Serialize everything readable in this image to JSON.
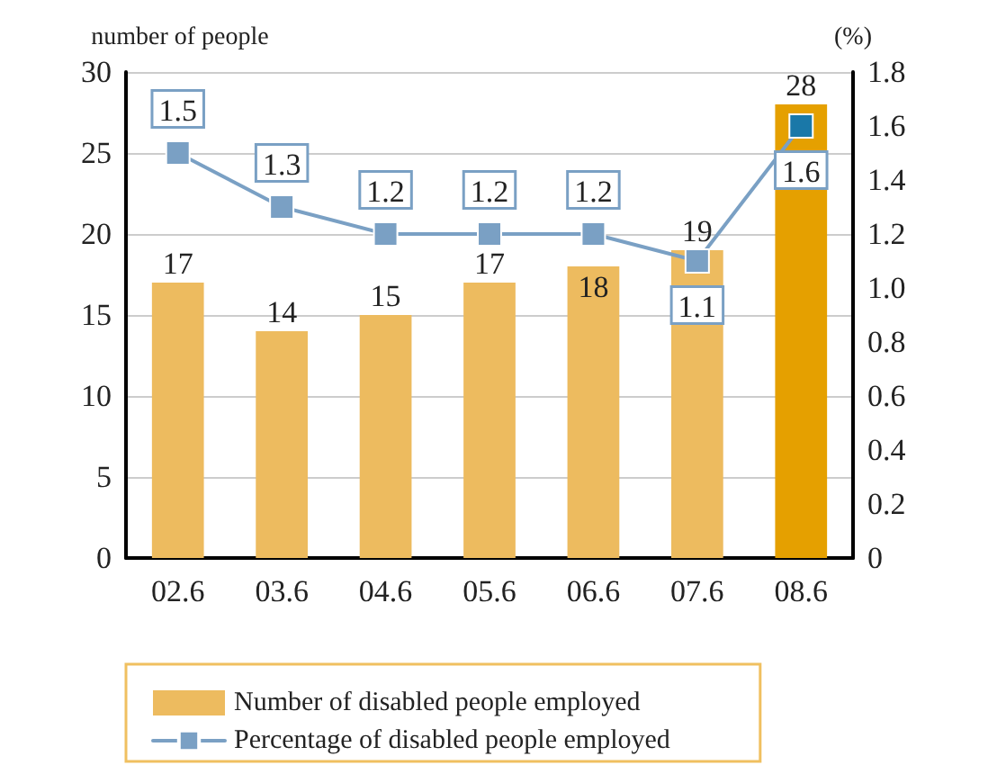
{
  "chart_data": {
    "type": "bar",
    "xlabel": null,
    "ylabel": "number of people",
    "y2label": "(%)",
    "categories": [
      "02.6",
      "03.6",
      "04.6",
      "05.6",
      "06.6",
      "07.6",
      "08.6"
    ],
    "series": [
      {
        "name": "Number of disabled people employed",
        "color": "#edbb5f",
        "colors": [
          "#edbb5f",
          "#edbb5f",
          "#edbb5f",
          "#edbb5f",
          "#edbb5f",
          "#edbb5f",
          "#e5a000"
        ],
        "values": [
          17,
          14,
          15,
          17,
          18,
          19,
          28
        ]
      },
      {
        "name": "Percentage of disabled people employed",
        "type": "line",
        "axis": "y2",
        "color": "#7aa0c4",
        "colors": [
          "#7aa0c4",
          "#7aa0c4",
          "#7aa0c4",
          "#7aa0c4",
          "#7aa0c4",
          "#7aa0c4",
          "#1a78a8"
        ],
        "values": [
          1.5,
          1.3,
          1.2,
          1.2,
          1.2,
          1.1,
          1.6
        ]
      }
    ],
    "ylim": [
      0,
      30
    ],
    "yticks": [
      0,
      5,
      10,
      15,
      20,
      25,
      30
    ],
    "y2lim": [
      0,
      1.8
    ],
    "y2ticks": [
      0,
      0.2,
      0.4,
      0.6,
      0.8,
      {
        "value": 1,
        "label": "1.0"
      },
      1.2,
      1.4,
      1.6,
      1.8
    ],
    "data_labels": true,
    "grid": "y",
    "legend": "bottom",
    "marker": "square",
    "line_style": "solid"
  }
}
